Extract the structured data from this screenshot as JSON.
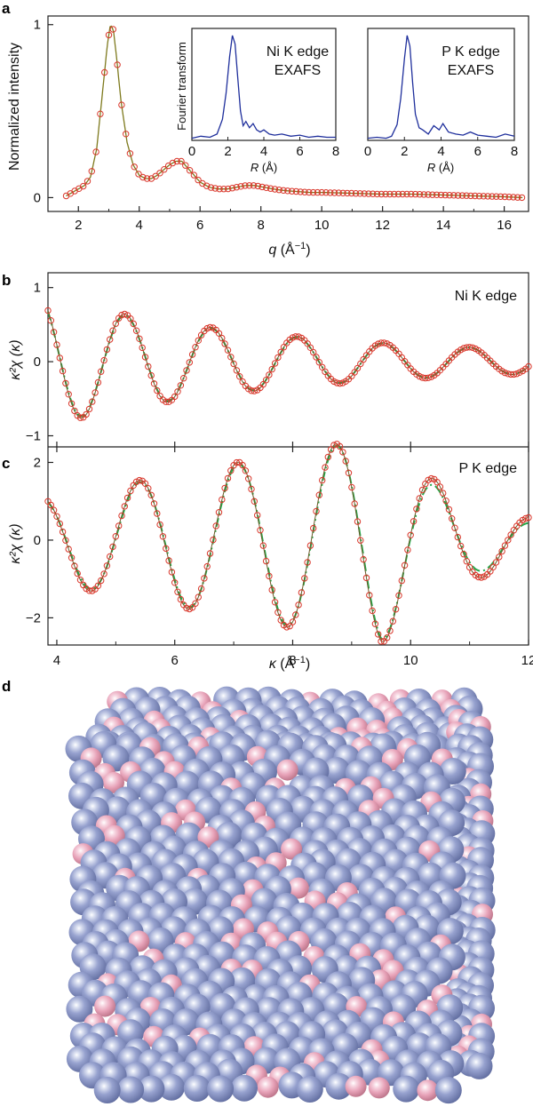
{
  "figure": {
    "panel_labels": [
      "a",
      "b",
      "c",
      "d"
    ]
  },
  "colors": {
    "circles": "#d9372b",
    "fit_line": "#7e7a1e",
    "green_dash": "#23a84a",
    "inset_line": "#1f2f9c",
    "atom_blue": "#8b97c9",
    "atom_pink": "#e9a7bd"
  },
  "chart_data": [
    {
      "id": "a",
      "type": "line",
      "xlabel_var": "q",
      "xlabel_unit": " (Å",
      "xlabel_exp": "−1",
      "xlabel_close": ")",
      "ylabel": "Normalized intensity",
      "xlim": [
        1.0,
        16.8
      ],
      "ylim": [
        -0.08,
        1.05
      ],
      "xticks": [
        2,
        4,
        6,
        8,
        10,
        12,
        14,
        16
      ],
      "yticks": [
        0,
        1
      ],
      "series": [
        {
          "style": "circles",
          "x": [
            1.6,
            1.8,
            2.0,
            2.2,
            2.4,
            2.6,
            2.8,
            2.95,
            3.05,
            3.15,
            3.25,
            3.4,
            3.6,
            3.8,
            4.0,
            4.2,
            4.4,
            4.6,
            4.8,
            5.0,
            5.2,
            5.4,
            5.6,
            5.8,
            6.0,
            6.3,
            6.6,
            6.9,
            7.2,
            7.5,
            7.8,
            8.1,
            8.4,
            8.8,
            9.2,
            9.6,
            10.0,
            11.0,
            12.0,
            13.0,
            14.0,
            15.0,
            16.0,
            16.6
          ],
          "y": [
            0.01,
            0.03,
            0.05,
            0.07,
            0.12,
            0.28,
            0.62,
            0.88,
            1.0,
            0.97,
            0.82,
            0.56,
            0.32,
            0.19,
            0.13,
            0.11,
            0.11,
            0.13,
            0.16,
            0.19,
            0.21,
            0.21,
            0.17,
            0.13,
            0.09,
            0.06,
            0.05,
            0.05,
            0.06,
            0.07,
            0.07,
            0.06,
            0.05,
            0.04,
            0.035,
            0.03,
            0.03,
            0.025,
            0.02,
            0.02,
            0.015,
            0.01,
            0.005,
            0.0
          ]
        }
      ],
      "insets": [
        {
          "title_line1": "Ni K edge",
          "title_line2": "EXAFS",
          "ylabel": "Fourier transform",
          "xlabel_var": "R",
          "xlabel_unit": " (Å)",
          "xlim": [
            0,
            8
          ],
          "ylim": [
            0,
            1.05
          ],
          "xticks": [
            0,
            2,
            4,
            6,
            8
          ],
          "x": [
            0.0,
            0.5,
            1.0,
            1.4,
            1.7,
            1.9,
            2.1,
            2.25,
            2.4,
            2.55,
            2.7,
            2.85,
            3.0,
            3.2,
            3.4,
            3.6,
            3.8,
            4.0,
            4.3,
            4.6,
            5.0,
            5.5,
            6.0,
            6.5,
            7.0,
            7.5,
            8.0
          ],
          "y": [
            0.02,
            0.04,
            0.03,
            0.06,
            0.2,
            0.45,
            0.8,
            1.0,
            0.92,
            0.6,
            0.28,
            0.14,
            0.18,
            0.12,
            0.16,
            0.1,
            0.08,
            0.1,
            0.06,
            0.05,
            0.06,
            0.04,
            0.05,
            0.03,
            0.04,
            0.03,
            0.03
          ]
        },
        {
          "title_line1": "P K edge",
          "title_line2": "EXAFS",
          "ylabel": "",
          "xlabel_var": "R",
          "xlabel_unit": " (Å)",
          "xlim": [
            0,
            8
          ],
          "ylim": [
            0,
            1.05
          ],
          "xticks": [
            0,
            2,
            4,
            6,
            8
          ],
          "x": [
            0.0,
            0.5,
            1.0,
            1.3,
            1.6,
            1.8,
            2.0,
            2.15,
            2.3,
            2.45,
            2.6,
            2.8,
            3.0,
            3.3,
            3.6,
            3.9,
            4.1,
            4.4,
            4.8,
            5.2,
            5.6,
            6.0,
            6.5,
            7.0,
            7.5,
            8.0
          ],
          "y": [
            0.02,
            0.03,
            0.02,
            0.04,
            0.15,
            0.4,
            0.78,
            1.0,
            0.9,
            0.55,
            0.25,
            0.12,
            0.1,
            0.06,
            0.14,
            0.1,
            0.16,
            0.08,
            0.06,
            0.05,
            0.08,
            0.05,
            0.04,
            0.03,
            0.06,
            0.04
          ]
        }
      ]
    },
    {
      "id": "b",
      "type": "line",
      "annotation": "Ni K edge",
      "ylabel": "κ²χ (κ)",
      "xlim": [
        3.85,
        12.0
      ],
      "ylim": [
        -1.15,
        1.2
      ],
      "yticks": [
        -1,
        0,
        1
      ],
      "xticks": [
        4,
        6,
        8,
        10,
        12
      ],
      "series": [
        {
          "style": "circles",
          "kind": "damped",
          "A0": 0.62,
          "f": 0.6849,
          "phase": -3.3523,
          "decay": 0.25
        },
        {
          "style": "dashdot",
          "kind": "damped",
          "A0": 0.6,
          "f": 0.6849,
          "phase": -3.3623,
          "decay": 0.25
        }
      ]
    },
    {
      "id": "c",
      "type": "line",
      "annotation": "P K edge",
      "ylabel": "κ²χ (κ)",
      "xlabel_var": "κ",
      "xlabel_unit": " (Å",
      "xlabel_exp": "−1",
      "xlabel_close": ")",
      "xlim": [
        3.85,
        12.0
      ],
      "ylim": [
        -2.7,
        2.4
      ],
      "yticks": [
        -2,
        0,
        2
      ],
      "xticks": [
        4,
        6,
        8,
        10,
        12
      ],
      "series": [
        {
          "style": "circles",
          "kind": "growing",
          "A0": 1.4,
          "f": 0.5999,
          "phase": -1.4995,
          "growth": 0.28,
          "end": 9.5,
          "decay": 0.6
        },
        {
          "style": "dashdot",
          "kind": "growing",
          "A0": 1.35,
          "f": 0.5999,
          "phase": -1.5295,
          "growth": 0.28,
          "end": 9.5,
          "decay": 0.7
        }
      ]
    }
  ]
}
